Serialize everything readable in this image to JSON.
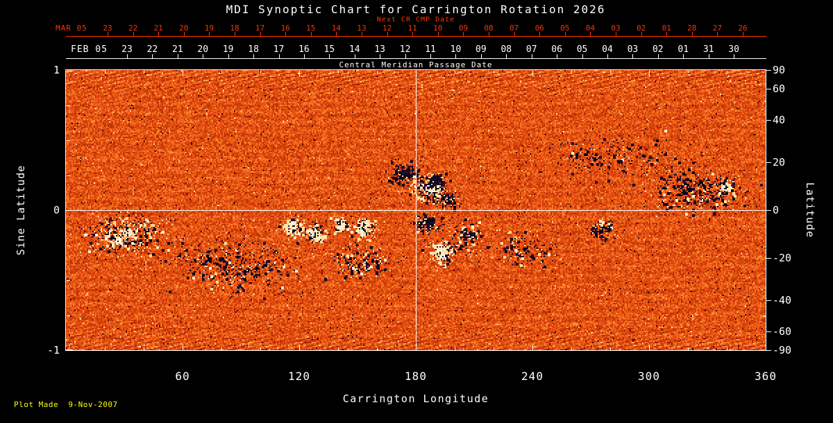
{
  "title": "MDI Synoptic Chart for Carrington Rotation 2026",
  "colors": {
    "background": "#000000",
    "axis": "#ffffff",
    "secondary_axis": "#ff3300",
    "footer": "#ffff00"
  },
  "top_axis_next_cr": {
    "label": "Next CR CMP Date",
    "month_label": "MAR 05",
    "tick_labels": [
      "23",
      "22",
      "21",
      "20",
      "19",
      "18",
      "17",
      "16",
      "15",
      "14",
      "13",
      "12",
      "11",
      "10",
      "09",
      "08",
      "07",
      "06",
      "05",
      "04",
      "03",
      "02",
      "01",
      "28",
      "27",
      "26"
    ]
  },
  "top_axis_cmp": {
    "label": "Central Meridian Passage Date",
    "month_label": "FEB 05",
    "tick_labels": [
      "23",
      "22",
      "21",
      "20",
      "19",
      "18",
      "17",
      "16",
      "15",
      "14",
      "13",
      "12",
      "11",
      "10",
      "09",
      "08",
      "07",
      "06",
      "05",
      "04",
      "03",
      "02",
      "01",
      "31",
      "30"
    ]
  },
  "x_axis": {
    "label": "Carrington Longitude",
    "tick_labels": [
      "60",
      "120",
      "180",
      "240",
      "300",
      "360"
    ],
    "tick_values": [
      60,
      120,
      180,
      240,
      300,
      360
    ],
    "range": [
      0,
      360
    ]
  },
  "y_axis_left": {
    "label": "Sine Latitude",
    "tick_labels": [
      "1",
      "0",
      "-1"
    ],
    "tick_values": [
      1,
      0,
      -1
    ],
    "minor_tick_values": [
      0.75,
      0.5,
      0.25,
      -0.25,
      -0.5,
      -0.75
    ],
    "range": [
      -1,
      1
    ]
  },
  "y_axis_right": {
    "label": "Latitude",
    "tick_labels": [
      "90",
      "60",
      "40",
      "20",
      "0",
      "-20",
      "-40",
      "-60",
      "-90"
    ],
    "tick_values": [
      90,
      60,
      40,
      20,
      0,
      -20,
      -40,
      -60,
      -90
    ]
  },
  "footer": "Plot Made  9-Nov-2007",
  "chart_data": {
    "type": "heatmap",
    "title": "MDI Synoptic Chart for Carrington Rotation 2026",
    "xlabel": "Carrington Longitude",
    "ylabel_left": "Sine Latitude",
    "ylabel_right": "Latitude",
    "xlim": [
      0,
      360
    ],
    "ylim_sine_latitude": [
      -1,
      1
    ],
    "grid": "crosshair only",
    "colormap": "red-orange magnetogram; bright white = strong positive magnetic field, black/dark navy = strong negative field, mottled orange = quiet sun noise, diagonal streak artifacts near poles",
    "crosshair": {
      "longitude": 180,
      "sine_latitude": 0
    },
    "active_regions": [
      {
        "longitude": 186,
        "sine_latitude": 0.16,
        "long_spread": 6,
        "lat_spread": 0.07,
        "polarity": "mixed",
        "white_fraction": 0.62,
        "specks": 240,
        "core": 6
      },
      {
        "longitude": 174,
        "sine_latitude": 0.27,
        "long_spread": 5,
        "lat_spread": 0.05,
        "polarity": "negative",
        "white_fraction": 0.12,
        "specks": 160,
        "core": 2
      },
      {
        "longitude": 196,
        "sine_latitude": 0.08,
        "long_spread": 4,
        "lat_spread": 0.04,
        "polarity": "negative",
        "white_fraction": 0.25,
        "specks": 90,
        "core": 0
      },
      {
        "longitude": 190,
        "sine_latitude": 0.22,
        "long_spread": 3,
        "lat_spread": 0.03,
        "polarity": "negative",
        "white_fraction": 0.1,
        "specks": 90,
        "core": 1
      },
      {
        "longitude": 185,
        "sine_latitude": -0.1,
        "long_spread": 5,
        "lat_spread": 0.05,
        "polarity": "negative",
        "white_fraction": 0.15,
        "specks": 150,
        "core": 1
      },
      {
        "longitude": 193,
        "sine_latitude": -0.3,
        "long_spread": 5,
        "lat_spread": 0.06,
        "polarity": "mixed",
        "white_fraction": 0.6,
        "specks": 170,
        "core": 4
      },
      {
        "longitude": 206,
        "sine_latitude": -0.18,
        "long_spread": 6,
        "lat_spread": 0.07,
        "polarity": "negative",
        "white_fraction": 0.25,
        "specks": 130,
        "core": 0
      },
      {
        "longitude": 117,
        "sine_latitude": -0.12,
        "long_spread": 4,
        "lat_spread": 0.05,
        "polarity": "positive",
        "white_fraction": 0.7,
        "specks": 150,
        "core": 4
      },
      {
        "longitude": 129,
        "sine_latitude": -0.17,
        "long_spread": 4,
        "lat_spread": 0.05,
        "polarity": "positive",
        "white_fraction": 0.6,
        "specks": 110,
        "core": 3
      },
      {
        "longitude": 141,
        "sine_latitude": -0.1,
        "long_spread": 3,
        "lat_spread": 0.04,
        "polarity": "positive",
        "white_fraction": 0.7,
        "specks": 80,
        "core": 2
      },
      {
        "longitude": 153,
        "sine_latitude": -0.13,
        "long_spread": 4,
        "lat_spread": 0.05,
        "polarity": "mixed",
        "white_fraction": 0.65,
        "specks": 140,
        "core": 4
      },
      {
        "longitude": 30,
        "sine_latitude": -0.18,
        "long_spread": 15,
        "lat_spread": 0.1,
        "polarity": "mixed",
        "white_fraction": 0.55,
        "specks": 420,
        "core": 2
      },
      {
        "longitude": 88,
        "sine_latitude": -0.4,
        "long_spread": 22,
        "lat_spread": 0.12,
        "polarity": "negative",
        "white_fraction": 0.22,
        "specks": 420,
        "core": 0
      },
      {
        "longitude": 152,
        "sine_latitude": -0.36,
        "long_spread": 12,
        "lat_spread": 0.09,
        "polarity": "negative",
        "white_fraction": 0.3,
        "specks": 200,
        "core": 0
      },
      {
        "longitude": 325,
        "sine_latitude": 0.13,
        "long_spread": 16,
        "lat_spread": 0.1,
        "polarity": "negative",
        "white_fraction": 0.15,
        "specks": 380,
        "core": 0
      },
      {
        "longitude": 276,
        "sine_latitude": -0.13,
        "long_spread": 5,
        "lat_spread": 0.05,
        "polarity": "negative",
        "white_fraction": 0.2,
        "specks": 110,
        "core": 0
      },
      {
        "longitude": 235,
        "sine_latitude": -0.28,
        "long_spread": 10,
        "lat_spread": 0.08,
        "polarity": "negative",
        "white_fraction": 0.3,
        "specks": 130,
        "core": 0
      },
      {
        "longitude": 340,
        "sine_latitude": 0.17,
        "long_spread": 3,
        "lat_spread": 0.03,
        "polarity": "positive",
        "white_fraction": 0.8,
        "specks": 50,
        "core": 2
      },
      {
        "longitude": 280,
        "sine_latitude": 0.38,
        "long_spread": 25,
        "lat_spread": 0.12,
        "polarity": "negative",
        "white_fraction": 0.1,
        "specks": 200,
        "core": 0
      }
    ]
  }
}
